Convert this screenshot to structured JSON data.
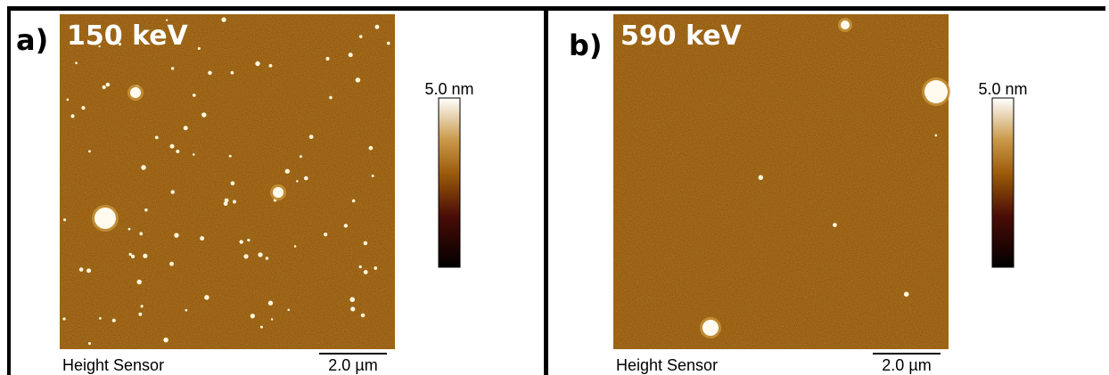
{
  "panels": [
    {
      "label": "a)",
      "energy": "150 keV",
      "colorbar_label": "5.0 nm",
      "sensor_label": "Height Sensor",
      "scale_label": "2.0 µm"
    },
    {
      "label": "b)",
      "energy": "590 keV",
      "colorbar_label": "5.0 nm",
      "sensor_label": "Height Sensor",
      "scale_label": "2.0 µm"
    }
  ]
}
